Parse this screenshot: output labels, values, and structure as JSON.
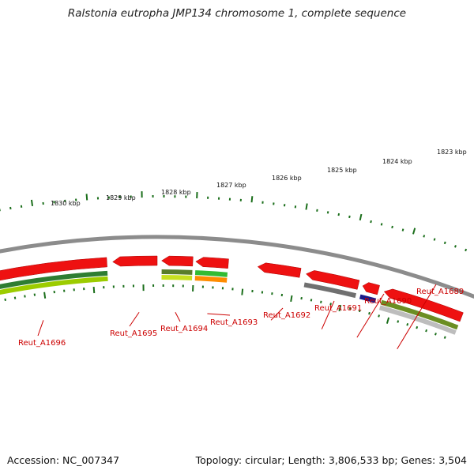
{
  "title": "Ralstonia eutropha JMP134 chromosome 1, complete sequence",
  "footer": {
    "accession": "Accession: NC_007347",
    "summary": "Topology: circular; Length: 3,806,533 bp; Genes: 3,504"
  },
  "scale": {
    "tick_labels": [
      "1830 kbp",
      "1829 kbp",
      "1828 kbp",
      "1827 kbp",
      "1826 kbp",
      "1825 kbp",
      "1824 kbp",
      "1823 kbp"
    ],
    "tick_color": "#1a6e1a"
  },
  "backbone_color": "#8c8c8c",
  "genes": [
    {
      "label": "Reut_A1696",
      "color": "#ee1111",
      "track_colors": [
        "#2e7d32",
        "#9ccc00"
      ]
    },
    {
      "label": "Reut_A1695",
      "color": "#ee1111",
      "track_colors": []
    },
    {
      "label": "Reut_A1694",
      "color": "#ee1111",
      "track_colors": [
        "#5a7d2a",
        "#c8e020"
      ]
    },
    {
      "label": "Reut_A1693",
      "color": "#ee1111",
      "track_colors": [
        "#33bb33",
        "#ff8c00"
      ]
    },
    {
      "label": "Reut_A1692",
      "color": "#ee1111",
      "track_colors": []
    },
    {
      "label": "Reut_A1691",
      "color": "#ee1111",
      "track_colors": [
        "#707070"
      ]
    },
    {
      "label": "Reut_A1690",
      "color": "#ee1111",
      "track_colors": [
        "#1a1a88"
      ]
    },
    {
      "label": "Reut_A1689",
      "color": "#ee1111",
      "track_colors": [
        "#6b8e23",
        "#bdbdbd"
      ]
    }
  ],
  "edge_feature_color": "#1133ee"
}
